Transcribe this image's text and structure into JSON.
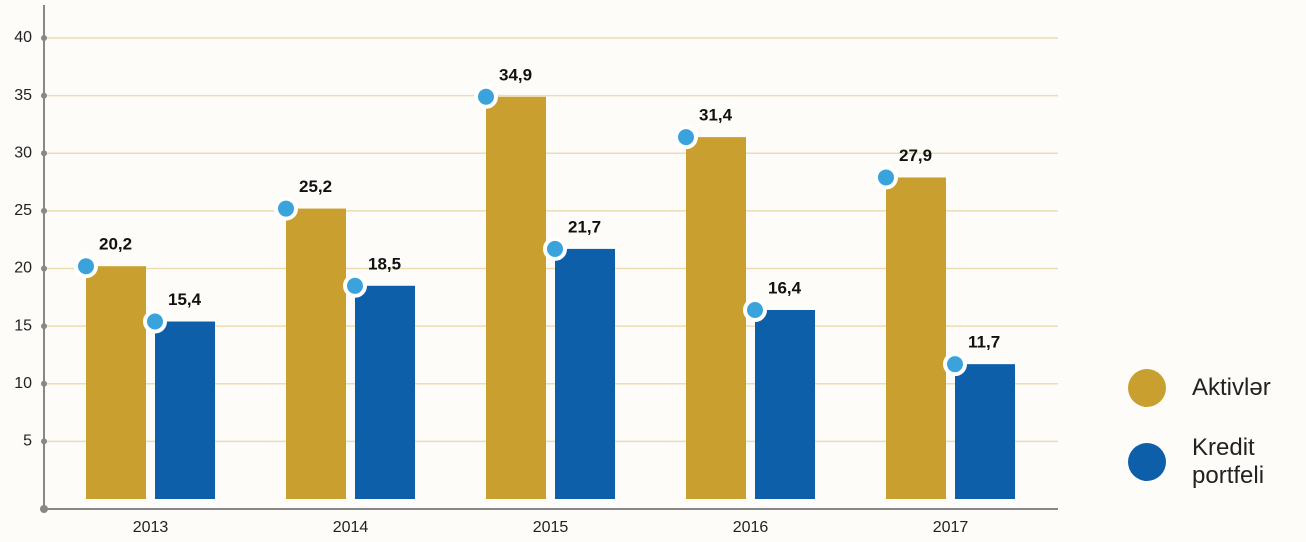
{
  "chart_data": {
    "type": "bar",
    "categories": [
      "2013",
      "2014",
      "2015",
      "2016",
      "2017"
    ],
    "series": [
      {
        "name": "Aktivlər",
        "color": "#c9a030",
        "values": [
          20.2,
          25.2,
          34.9,
          31.4,
          27.9
        ],
        "value_labels": [
          "20,2",
          "25,2",
          "34,9",
          "31,4",
          "27,9"
        ]
      },
      {
        "name": "Kredit portfeli",
        "color": "#0e5fa9",
        "values": [
          15.4,
          18.5,
          21.7,
          16.4,
          11.7
        ],
        "value_labels": [
          "15,4",
          "18,5",
          "21,7",
          "16,4",
          "11,7"
        ]
      }
    ],
    "ylim": [
      0,
      40
    ],
    "yticks": [
      5,
      10,
      15,
      20,
      25,
      30,
      35,
      40
    ],
    "grid": true,
    "legend": "right"
  }
}
